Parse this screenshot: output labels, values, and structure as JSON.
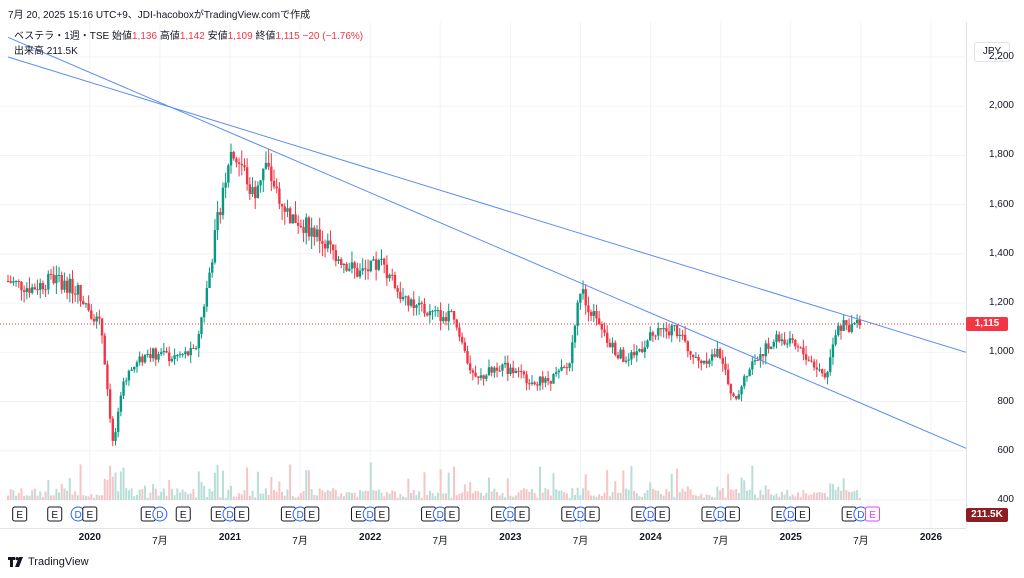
{
  "header": {
    "caption": "7月 20, 2025 15:16 UTC+9、JDI-hacoboxがTradingView.comで作成"
  },
  "legend": {
    "symbol": "ベステラ・1週・TSE",
    "open_label": "始値",
    "open_value": "1,136",
    "high_label": "高値",
    "high_value": "1,142",
    "low_label": "安値",
    "low_value": "1,109",
    "close_label": "終値",
    "close_value": "1,115",
    "change": "−20 (−1.76%)",
    "volume_label": "出来高",
    "volume_value": "211.5K"
  },
  "axis": {
    "currency": "JPY",
    "price_tag": "1,115",
    "volume_tag": "211.5K"
  },
  "footer": {
    "brand": "TradingView"
  },
  "colors": {
    "up": "#089981",
    "down": "#f23645",
    "trendline": "#5b8def",
    "price_line": "#f23645"
  },
  "icons": [
    "earnings-marker-icon",
    "dividend-marker-icon",
    "tradingview-logo-icon"
  ],
  "chart_data": {
    "type": "candlestick",
    "interval": "1週",
    "x_range": [
      "2019-06",
      "2026-04"
    ],
    "ylim": [
      400,
      2300
    ],
    "y_ticks": [
      400,
      600,
      800,
      1000,
      1200,
      1400,
      1600,
      1800,
      2000,
      2200
    ],
    "y_tick_labels": [
      "400",
      "600",
      "800",
      "1,000",
      "1,200",
      "1,400",
      "1,600",
      "1,800",
      "2,000",
      "2,200"
    ],
    "x_ticks": [
      {
        "date": "2020-01",
        "label": "2020",
        "year": true
      },
      {
        "date": "2020-07",
        "label": "7月",
        "year": false
      },
      {
        "date": "2021-01",
        "label": "2021",
        "year": true
      },
      {
        "date": "2021-07",
        "label": "7月",
        "year": false
      },
      {
        "date": "2022-01",
        "label": "2022",
        "year": true
      },
      {
        "date": "2022-07",
        "label": "7月",
        "year": false
      },
      {
        "date": "2023-01",
        "label": "2023",
        "year": true
      },
      {
        "date": "2023-07",
        "label": "7月",
        "year": false
      },
      {
        "date": "2024-01",
        "label": "2024",
        "year": true
      },
      {
        "date": "2024-07",
        "label": "7月",
        "year": false
      },
      {
        "date": "2025-01",
        "label": "2025",
        "year": true
      },
      {
        "date": "2025-07",
        "label": "7月",
        "year": false
      },
      {
        "date": "2026-01",
        "label": "2026",
        "year": true
      }
    ],
    "price_keypoints": [
      [
        "2019-06",
        1290
      ],
      [
        "2019-08",
        1260
      ],
      [
        "2019-10",
        1300
      ],
      [
        "2019-12",
        1250
      ],
      [
        "2020-02",
        1100
      ],
      [
        "2020-03",
        620
      ],
      [
        "2020-04",
        900
      ],
      [
        "2020-06",
        1000
      ],
      [
        "2020-08",
        980
      ],
      [
        "2020-10",
        1000
      ],
      [
        "2020-11",
        1250
      ],
      [
        "2020-12",
        1550
      ],
      [
        "2021-01",
        1820
      ],
      [
        "2021-02",
        1760
      ],
      [
        "2021-03",
        1640
      ],
      [
        "2021-04",
        1760
      ],
      [
        "2021-06",
        1560
      ],
      [
        "2021-08",
        1500
      ],
      [
        "2021-10",
        1400
      ],
      [
        "2021-12",
        1320
      ],
      [
        "2022-02",
        1360
      ],
      [
        "2022-04",
        1200
      ],
      [
        "2022-06",
        1160
      ],
      [
        "2022-08",
        1140
      ],
      [
        "2022-10",
        880
      ],
      [
        "2022-12",
        950
      ],
      [
        "2023-02",
        900
      ],
      [
        "2023-04",
        880
      ],
      [
        "2023-06",
        940
      ],
      [
        "2023-07",
        1260
      ],
      [
        "2023-09",
        1060
      ],
      [
        "2023-11",
        960
      ],
      [
        "2024-01",
        1060
      ],
      [
        "2024-03",
        1100
      ],
      [
        "2024-05",
        960
      ],
      [
        "2024-07",
        1000
      ],
      [
        "2024-08",
        800
      ],
      [
        "2024-10",
        980
      ],
      [
        "2024-12",
        1060
      ],
      [
        "2025-02",
        1000
      ],
      [
        "2025-04",
        900
      ],
      [
        "2025-05",
        1100
      ],
      [
        "2025-07",
        1115
      ]
    ],
    "events": [
      {
        "date": "2019-07",
        "type": "E"
      },
      {
        "date": "2019-10",
        "type": "E"
      },
      {
        "date": "2019-12",
        "type": "D"
      },
      {
        "date": "2020-01",
        "type": "E"
      },
      {
        "date": "2020-06",
        "type": "E"
      },
      {
        "date": "2020-07",
        "type": "D"
      },
      {
        "date": "2020-09",
        "type": "E"
      },
      {
        "date": "2020-12",
        "type": "E"
      },
      {
        "date": "2021-01",
        "type": "D"
      },
      {
        "date": "2021-02",
        "type": "E"
      },
      {
        "date": "2021-06",
        "type": "E"
      },
      {
        "date": "2021-07",
        "type": "D"
      },
      {
        "date": "2021-08",
        "type": "E"
      },
      {
        "date": "2021-12",
        "type": "E"
      },
      {
        "date": "2022-01",
        "type": "D"
      },
      {
        "date": "2022-02",
        "type": "E"
      },
      {
        "date": "2022-06",
        "type": "E"
      },
      {
        "date": "2022-07",
        "type": "D"
      },
      {
        "date": "2022-08",
        "type": "E"
      },
      {
        "date": "2022-12",
        "type": "E"
      },
      {
        "date": "2023-01",
        "type": "D"
      },
      {
        "date": "2023-02",
        "type": "E"
      },
      {
        "date": "2023-06",
        "type": "E"
      },
      {
        "date": "2023-07",
        "type": "D"
      },
      {
        "date": "2023-08",
        "type": "E"
      },
      {
        "date": "2023-12",
        "type": "E"
      },
      {
        "date": "2024-01",
        "type": "D"
      },
      {
        "date": "2024-02",
        "type": "E"
      },
      {
        "date": "2024-06",
        "type": "E"
      },
      {
        "date": "2024-07",
        "type": "D"
      },
      {
        "date": "2024-08",
        "type": "E"
      },
      {
        "date": "2024-12",
        "type": "E"
      },
      {
        "date": "2025-01",
        "type": "D"
      },
      {
        "date": "2025-02",
        "type": "E"
      },
      {
        "date": "2025-06",
        "type": "E"
      },
      {
        "date": "2025-07",
        "type": "D"
      },
      {
        "date": "2025-08",
        "type": "E",
        "upcoming": true
      }
    ],
    "trendlines": [
      {
        "from": [
          "2019-06",
          2280
        ],
        "to": [
          "2026-04",
          610
        ]
      },
      {
        "from": [
          "2019-06",
          2200
        ],
        "to": [
          "2026-04",
          1000
        ]
      }
    ],
    "current_price": 1115,
    "grid": true
  }
}
